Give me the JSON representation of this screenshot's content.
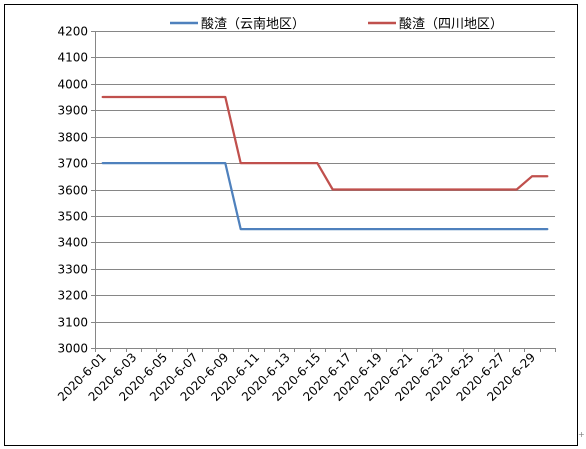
{
  "chart_data": {
    "type": "line",
    "title": "",
    "xlabel": "",
    "ylabel": "",
    "ylim": [
      3000,
      4200
    ],
    "y_ticks": [
      3000,
      3100,
      3200,
      3300,
      3400,
      3500,
      3600,
      3700,
      3800,
      3900,
      4000,
      4100,
      4200
    ],
    "grid": "horizontal",
    "legend_position": "top",
    "categories": [
      "2020-6-01",
      "2020-6-02",
      "2020-6-03",
      "2020-6-04",
      "2020-6-05",
      "2020-6-06",
      "2020-6-07",
      "2020-6-08",
      "2020-6-09",
      "2020-6-10",
      "2020-6-11",
      "2020-6-12",
      "2020-6-13",
      "2020-6-14",
      "2020-6-15",
      "2020-6-16",
      "2020-6-17",
      "2020-6-18",
      "2020-6-19",
      "2020-6-20",
      "2020-6-21",
      "2020-6-22",
      "2020-6-23",
      "2020-6-24",
      "2020-6-25",
      "2020-6-26",
      "2020-6-27",
      "2020-6-28",
      "2020-6-29",
      "2020-6-30"
    ],
    "x_tick_labels": [
      "2020-6-01",
      "2020-6-03",
      "2020-6-05",
      "2020-6-07",
      "2020-6-09",
      "2020-6-11",
      "2020-6-13",
      "2020-6-15",
      "2020-6-17",
      "2020-6-19",
      "2020-6-21",
      "2020-6-23",
      "2020-6-25",
      "2020-6-27",
      "2020-6-29"
    ],
    "series": [
      {
        "name": "酸渣（云南地区）",
        "color": "#4f81bd",
        "values": [
          3700,
          3700,
          3700,
          3700,
          3700,
          3700,
          3700,
          3700,
          3700,
          3450,
          3450,
          3450,
          3450,
          3450,
          3450,
          3450,
          3450,
          3450,
          3450,
          3450,
          3450,
          3450,
          3450,
          3450,
          3450,
          3450,
          3450,
          3450,
          3450,
          3450
        ]
      },
      {
        "name": "酸渣（四川地区）",
        "color": "#c0504d",
        "values": [
          3950,
          3950,
          3950,
          3950,
          3950,
          3950,
          3950,
          3950,
          3950,
          3700,
          3700,
          3700,
          3700,
          3700,
          3700,
          3600,
          3600,
          3600,
          3600,
          3600,
          3600,
          3600,
          3600,
          3600,
          3600,
          3600,
          3600,
          3600,
          3650,
          3650
        ]
      }
    ]
  }
}
